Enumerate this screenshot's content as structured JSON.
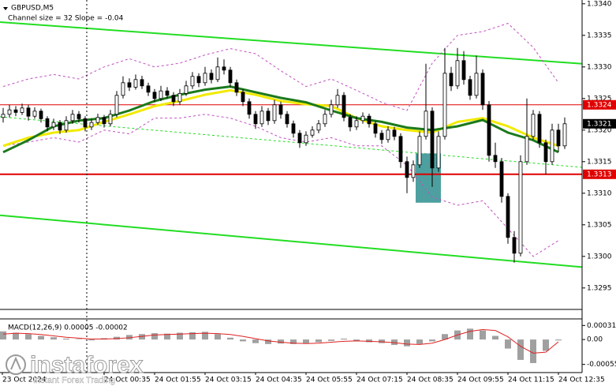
{
  "chart_data": {
    "type": "candlestick",
    "title": "GBPUSD,M5",
    "subtitle": "Channel size = 32 Slope = -0.04",
    "color": "#000000",
    "ylim": [
      1.32916,
      1.33406
    ],
    "yticks": [
      1.3295,
      {
        "value": 1.33,
        "label": "1.3300"
      },
      1.3305,
      {
        "value": 1.331,
        "label": "1.3310"
      },
      1.3315,
      {
        "value": 1.332,
        "label": "1.3320"
      },
      1.3325,
      {
        "value": 1.333,
        "label": "1.3330"
      },
      1.3335,
      {
        "value": 1.334,
        "label": "1.3340"
      }
    ],
    "x_labels": [
      "23 Oct 2024",
      "24 Oct 00:35",
      "24 Oct 01:55",
      "24 Oct 03:15",
      "24 Oct 04:35",
      "24 Oct 05:55",
      "24 Oct 07:15",
      "24 Oct 08:35",
      "24 Oct 09:55",
      "24 Oct 11:15",
      "24 Oct 12:35"
    ],
    "ohlc": [
      [
        1.3322,
        1.33235,
        1.33212,
        1.33225
      ],
      [
        1.33225,
        1.3324,
        1.3322,
        1.33232
      ],
      [
        1.33232,
        1.33238,
        1.33222,
        1.33228
      ],
      [
        1.33228,
        1.33242,
        1.33224,
        1.33235
      ],
      [
        1.33235,
        1.3324,
        1.33215,
        1.33222
      ],
      [
        1.33222,
        1.33236,
        1.33218,
        1.3323
      ],
      [
        1.3323,
        1.33234,
        1.33212,
        1.33218
      ],
      [
        1.33218,
        1.33222,
        1.33198,
        1.33205
      ],
      [
        1.33205,
        1.33218,
        1.332,
        1.33212
      ],
      [
        1.33212,
        1.33216,
        1.33194,
        1.332
      ],
      [
        1.332,
        1.33222,
        1.33196,
        1.33215
      ],
      [
        1.33215,
        1.33232,
        1.3321,
        1.33225
      ],
      [
        1.33225,
        1.3323,
        1.33212,
        1.33218
      ],
      [
        1.33218,
        1.33222,
        1.33198,
        1.33205
      ],
      [
        1.33205,
        1.33218,
        1.332,
        1.33212
      ],
      [
        1.33212,
        1.33226,
        1.33208,
        1.3322
      ],
      [
        1.3322,
        1.33224,
        1.33204,
        1.3321
      ],
      [
        1.3321,
        1.33232,
        1.33206,
        1.33225
      ],
      [
        1.33225,
        1.33262,
        1.3322,
        1.33255
      ],
      [
        1.33255,
        1.33285,
        1.3325,
        1.33275
      ],
      [
        1.33275,
        1.33282,
        1.33262,
        1.33268
      ],
      [
        1.33268,
        1.33288,
        1.33264,
        1.3328
      ],
      [
        1.3328,
        1.33286,
        1.33265,
        1.3327
      ],
      [
        1.3327,
        1.33275,
        1.33254,
        1.3326
      ],
      [
        1.3326,
        1.33265,
        1.33244,
        1.3325
      ],
      [
        1.3325,
        1.3327,
        1.33246,
        1.33262
      ],
      [
        1.33262,
        1.33268,
        1.3325,
        1.33255
      ],
      [
        1.33255,
        1.3326,
        1.33238,
        1.33245
      ],
      [
        1.33245,
        1.33265,
        1.3324,
        1.33258
      ],
      [
        1.33258,
        1.33278,
        1.33254,
        1.3327
      ],
      [
        1.3327,
        1.33292,
        1.33265,
        1.33285
      ],
      [
        1.33285,
        1.3329,
        1.33268,
        1.33275
      ],
      [
        1.33275,
        1.333,
        1.3327,
        1.3329
      ],
      [
        1.3329,
        1.33296,
        1.33274,
        1.3328
      ],
      [
        1.3328,
        1.33315,
        1.33276,
        1.333
      ],
      [
        1.333,
        1.33312,
        1.33288,
        1.33295
      ],
      [
        1.33295,
        1.333,
        1.33268,
        1.33275
      ],
      [
        1.33275,
        1.3328,
        1.33254,
        1.3326
      ],
      [
        1.3326,
        1.33265,
        1.33238,
        1.33245
      ],
      [
        1.33245,
        1.3325,
        1.33218,
        1.33225
      ],
      [
        1.33225,
        1.3323,
        1.33202,
        1.3321
      ],
      [
        1.3321,
        1.33238,
        1.33205,
        1.3323
      ],
      [
        1.3323,
        1.33235,
        1.33208,
        1.33215
      ],
      [
        1.33215,
        1.33248,
        1.3321,
        1.3324
      ],
      [
        1.3324,
        1.33245,
        1.33218,
        1.33225
      ],
      [
        1.33225,
        1.3323,
        1.33204,
        1.3321
      ],
      [
        1.3321,
        1.33215,
        1.33188,
        1.33195
      ],
      [
        1.33195,
        1.332,
        1.33172,
        1.3318
      ],
      [
        1.3318,
        1.33198,
        1.33175,
        1.33192
      ],
      [
        1.33192,
        1.33206,
        1.33188,
        1.332
      ],
      [
        1.332,
        1.33216,
        1.33195,
        1.3321
      ],
      [
        1.3321,
        1.33232,
        1.33205,
        1.33225
      ],
      [
        1.33225,
        1.33248,
        1.3322,
        1.3324
      ],
      [
        1.3324,
        1.33265,
        1.33235,
        1.33255
      ],
      [
        1.33255,
        1.3326,
        1.33214,
        1.3322
      ],
      [
        1.3322,
        1.33225,
        1.33198,
        1.33205
      ],
      [
        1.33205,
        1.33222,
        1.332,
        1.33215
      ],
      [
        1.33215,
        1.33228,
        1.3321,
        1.33222
      ],
      [
        1.33222,
        1.33226,
        1.33204,
        1.3321
      ],
      [
        1.3321,
        1.33214,
        1.33188,
        1.33195
      ],
      [
        1.33195,
        1.332,
        1.33178,
        1.33185
      ],
      [
        1.33185,
        1.33206,
        1.3318,
        1.332
      ],
      [
        1.332,
        1.33205,
        1.33184,
        1.3319
      ],
      [
        1.3319,
        1.33195,
        1.3314,
        1.3315
      ],
      [
        1.3315,
        1.33158,
        1.331,
        1.33125
      ],
      [
        1.33125,
        1.33152,
        1.33118,
        1.33145
      ],
      [
        1.33145,
        1.33198,
        1.3314,
        1.3319
      ],
      [
        1.3319,
        1.33305,
        1.33185,
        1.3323
      ],
      [
        1.3323,
        1.33236,
        1.3311,
        1.3314
      ],
      [
        1.3314,
        1.33198,
        1.33134,
        1.3319
      ],
      [
        1.3319,
        1.3333,
        1.33185,
        1.3329
      ],
      [
        1.3329,
        1.333,
        1.33262,
        1.3327
      ],
      [
        1.3327,
        1.3333,
        1.33265,
        1.3331
      ],
      [
        1.3331,
        1.33325,
        1.33272,
        1.3328
      ],
      [
        1.3328,
        1.33286,
        1.33248,
        1.33255
      ],
      [
        1.33255,
        1.33318,
        1.3325,
        1.3329
      ],
      [
        1.3329,
        1.33296,
        1.33232,
        1.3324
      ],
      [
        1.3324,
        1.33246,
        1.3315,
        1.3316
      ],
      [
        1.3316,
        1.3318,
        1.3314,
        1.3315
      ],
      [
        1.3315,
        1.33156,
        1.33085,
        1.33095
      ],
      [
        1.33095,
        1.331,
        1.3302,
        1.3303
      ],
      [
        1.3303,
        1.3304,
        1.3299,
        1.33005
      ],
      [
        1.33005,
        1.3316,
        1.33,
        1.3315
      ],
      [
        1.3315,
        1.3325,
        1.33145,
        1.3319
      ],
      [
        1.3319,
        1.33232,
        1.33185,
        1.33225
      ],
      [
        1.33225,
        1.3323,
        1.33172,
        1.3318
      ],
      [
        1.3318,
        1.33185,
        1.3313,
        1.3315
      ],
      [
        1.3315,
        1.3321,
        1.33145,
        1.332
      ],
      [
        1.332,
        1.3321,
        1.33165,
        1.33175
      ],
      [
        1.33175,
        1.3322,
        1.3317,
        1.3321
      ]
    ],
    "series": [
      {
        "color": "#1b7a1b",
        "values": [
          1.33165,
          1.33184,
          1.33206,
          1.33215,
          1.33219,
          1.33231,
          1.33246,
          1.33256,
          1.33264,
          1.33269,
          1.3326,
          1.33251,
          1.33244,
          1.33231,
          1.33219,
          1.33213,
          1.33204,
          1.332,
          1.33206,
          1.33216,
          1.33196,
          1.33184,
          1.33165
        ]
      },
      {
        "color": "#f2ea00",
        "values": [
          1.33175,
          1.33188,
          1.33196,
          1.332,
          1.33213,
          1.33225,
          1.33238,
          1.33246,
          1.33256,
          1.33263,
          1.33256,
          1.33246,
          1.33241,
          1.33238,
          1.33219,
          1.33206,
          1.332,
          1.33196,
          1.33213,
          1.33219,
          1.33206,
          1.33188,
          1.33175
        ]
      },
      {
        "color": "#c050c0",
        "values": [
          1.33269,
          1.33281,
          1.33288,
          1.33281,
          1.333,
          1.33313,
          1.333,
          1.33306,
          1.33319,
          1.33329,
          1.33321,
          1.33294,
          1.33269,
          1.33281,
          1.33263,
          1.33244,
          1.33231,
          1.33306,
          1.3335,
          1.33356,
          1.33369,
          1.33331,
          1.33275
        ]
      },
      {
        "color": "#c050c0",
        "values": [
          1.33175,
          1.33181,
          1.33188,
          1.33181,
          1.332,
          1.33194,
          1.33219,
          1.33219,
          1.33225,
          1.33219,
          1.33206,
          1.33188,
          1.33181,
          1.33188,
          1.33175,
          1.33175,
          1.33144,
          1.33094,
          1.33081,
          1.33088,
          1.33044,
          1.33,
          1.33025
        ]
      }
    ],
    "channel": {
      "color": "#22dd22",
      "upper": [
        1.33371,
        1.33305
      ],
      "middle": [
        1.33221,
        1.33141
      ],
      "lower": [
        1.33065,
        1.32983
      ]
    },
    "levels": [
      {
        "value": 1.3324,
        "color": "#e00000"
      },
      {
        "value": 1.3313,
        "color": "#e00000"
      }
    ],
    "last_price": 1.3321,
    "zone": {
      "top": 1.33163,
      "bottom": 1.33085,
      "color": "#2f8f8f"
    },
    "macd": {
      "title": "MACD(12,26,9) 0.00005 -0.00002",
      "ylim": [
        -0.00073,
        0.000455
      ],
      "yticks": [
        0.00031,
        {
          "value": 0,
          "label": "0.00"
        },
        -0.00055
      ],
      "histogram": {
        "color": "#a0a0a0",
        "values": [
          0.00018,
          0.00015,
          0.00012,
          8e-05,
          5e-05,
          2e-05,
          1e-05,
          -2e-05,
          3e-05,
          6e-05,
          0.0001,
          0.00012,
          0.00014,
          0.00013,
          0.00015,
          0.00016,
          0.00017,
          0.00012,
          4e-05,
          -4e-05,
          -8e-05,
          -0.0001,
          -9e-05,
          -0.0001,
          -8e-05,
          -6e-05,
          -3e-05,
          2e-05,
          -4e-05,
          -6e-05,
          -8e-05,
          -0.00012,
          -0.00015,
          -0.0001,
          -4e-05,
          0.00012,
          0.0002,
          0.00024,
          0.0002,
          8e-05,
          -0.0002,
          -0.00045,
          -0.00052,
          -0.00025,
          -2e-05
        ]
      },
      "signal": {
        "color": "#e02020",
        "values": [
          0.00012,
          0.00014,
          0.00013,
          0.00011,
          8e-05,
          5e-05,
          3e-05,
          1e-05,
          1e-05,
          2e-05,
          4e-05,
          7e-05,
          0.0001,
          0.00011,
          0.00012,
          0.00013,
          0.00014,
          0.00013,
          0.00011,
          7e-05,
          2e-05,
          -3e-05,
          -6e-05,
          -8e-05,
          -9e-05,
          -8e-05,
          -6e-05,
          -4e-05,
          -3e-05,
          -4e-05,
          -5e-05,
          -7e-05,
          -0.0001,
          -0.00011,
          -8e-05,
          0,
          0.0001,
          0.00018,
          0.00022,
          0.0002,
          6e-05,
          -0.00015,
          -0.0003,
          -0.00028,
          -5e-05
        ]
      }
    }
  },
  "watermark": {
    "name": "instaforex",
    "tagline": "Instant Forex Trading"
  }
}
